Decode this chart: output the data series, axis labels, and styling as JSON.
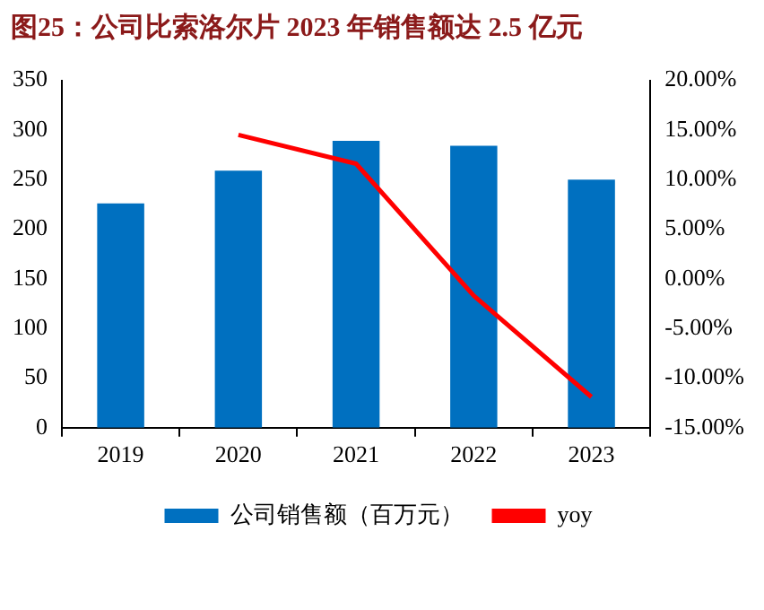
{
  "chart_data": {
    "type": "bar",
    "title": "图25：公司比索洛尔片 2023 年销售额达 2.5 亿元",
    "categories": [
      "2019",
      "2020",
      "2021",
      "2022",
      "2023"
    ],
    "series": [
      {
        "name": "公司销售额（百万元）",
        "color": "#0070c0",
        "values": [
          226,
          259,
          289,
          284,
          250
        ]
      },
      {
        "name": "yoy",
        "type": "line",
        "axis": "y2",
        "color": "#ff0000",
        "values": [
          null,
          14.5,
          11.6,
          -1.7,
          -11.9
        ]
      }
    ],
    "ylim": [
      0,
      350
    ],
    "yticks": [
      0,
      50,
      100,
      150,
      200,
      250,
      300,
      350
    ],
    "y2lim": [
      -15,
      20
    ],
    "y2ticks": [
      {
        "value": -15,
        "label": "-15.00%"
      },
      {
        "value": -10,
        "label": "-10.00%"
      },
      {
        "value": -5,
        "label": "-5.00%"
      },
      {
        "value": 0,
        "label": "0.00%"
      },
      {
        "value": 5,
        "label": "5.00%"
      },
      {
        "value": 10,
        "label": "10.00%"
      },
      {
        "value": 15,
        "label": "15.00%"
      },
      {
        "value": 20,
        "label": "20.00%"
      }
    ],
    "grid": false,
    "legend": "bottom",
    "marker": "none",
    "line_style": "solid"
  }
}
